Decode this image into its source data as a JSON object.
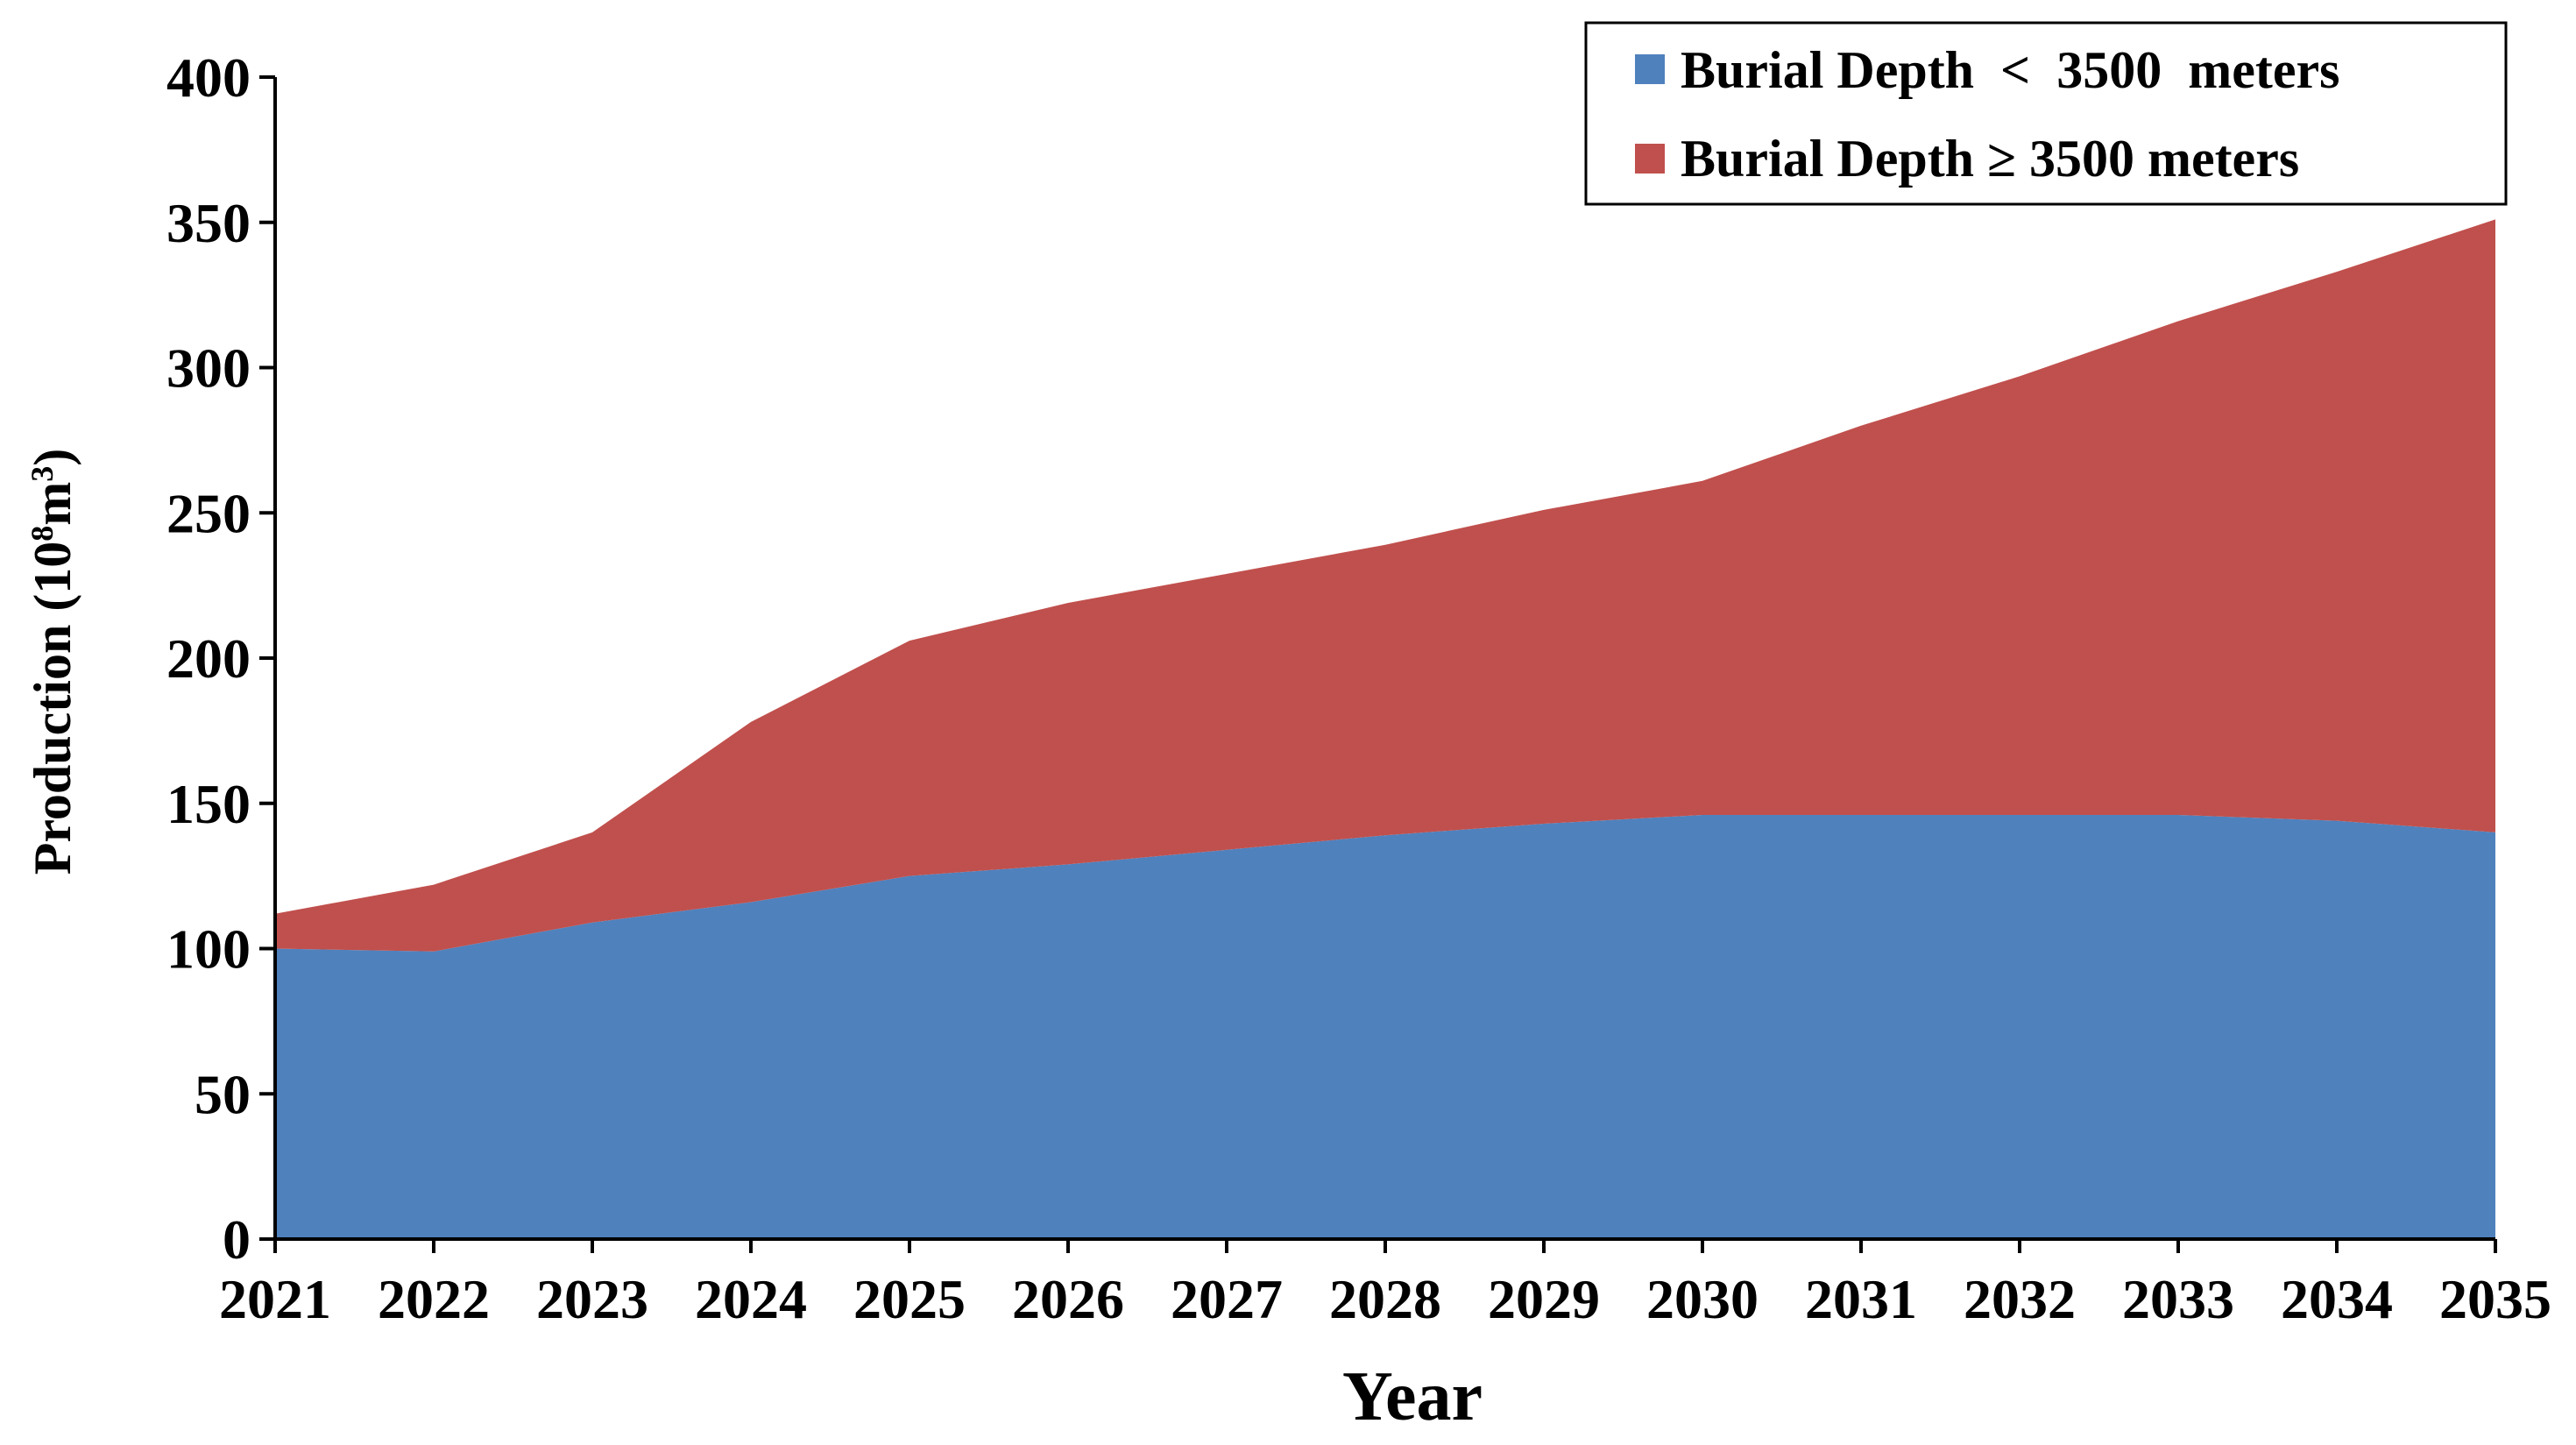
{
  "chart_data": {
    "type": "area",
    "stacked": true,
    "title": "",
    "xlabel": "Year",
    "ylabel": {
      "prefix": "Production (10",
      "exp1": "8",
      "mid": "m",
      "exp2": "3",
      "suffix": ")"
    },
    "x": [
      "2021",
      "2022",
      "2023",
      "2024",
      "2025",
      "2026",
      "2027",
      "2028",
      "2029",
      "2030",
      "2031",
      "2032",
      "2033",
      "2034",
      "2035"
    ],
    "ylim": [
      0,
      400
    ],
    "yticks": [
      "0",
      "50",
      "100",
      "150",
      "200",
      "250",
      "300",
      "350",
      "400"
    ],
    "grid": false,
    "legend_position": "top-right",
    "series": [
      {
        "name": "Burial Depth  <  3500  meters",
        "color": "#4f81bd",
        "values": [
          100,
          99,
          109,
          116,
          125,
          129,
          134,
          139,
          143,
          146,
          146,
          146,
          146,
          144,
          140
        ]
      },
      {
        "name": "Burial Depth ≥ 3500 meters",
        "color": "#c0504d",
        "values": [
          12,
          23,
          31,
          62,
          81,
          90,
          95,
          100,
          108,
          115,
          134,
          151,
          170,
          189,
          211
        ]
      }
    ]
  }
}
